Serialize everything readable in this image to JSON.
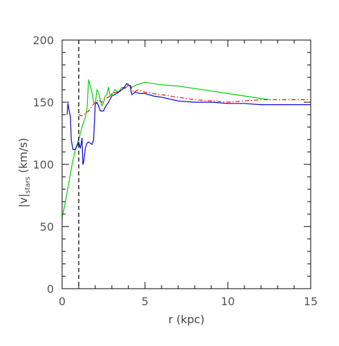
{
  "chart_data": {
    "type": "line",
    "xlabel": "r  (kpc)",
    "ylabel_main": "|v|",
    "ylabel_sub": "stars",
    "ylabel_units": "  (km/s)",
    "xlim": [
      0,
      15
    ],
    "ylim": [
      0,
      200
    ],
    "x_ticks": [
      0,
      5,
      10,
      15
    ],
    "y_ticks": [
      0,
      50,
      100,
      150,
      200
    ],
    "x_minor_step": 1,
    "y_minor_step": 10,
    "grid": false,
    "reference_line": {
      "x": 1,
      "style": "dashed",
      "color": "#000000"
    },
    "series": [
      {
        "color": "#00cc00",
        "style": "solid",
        "points": [
          [
            0,
            57
          ],
          [
            0.2,
            70
          ],
          [
            0.4,
            85
          ],
          [
            0.6,
            100
          ],
          [
            0.8,
            112
          ],
          [
            1.0,
            120
          ],
          [
            1.2,
            130
          ],
          [
            1.4,
            138
          ],
          [
            1.5,
            145
          ],
          [
            1.6,
            168
          ],
          [
            1.7,
            163
          ],
          [
            1.8,
            158
          ],
          [
            1.9,
            150
          ],
          [
            2.0,
            149
          ],
          [
            2.1,
            160
          ],
          [
            2.2,
            158
          ],
          [
            2.3,
            152
          ],
          [
            2.4,
            147
          ],
          [
            2.5,
            150
          ],
          [
            2.6,
            155
          ],
          [
            2.7,
            156
          ],
          [
            2.8,
            162
          ],
          [
            2.9,
            155
          ],
          [
            3.0,
            156
          ],
          [
            3.2,
            160
          ],
          [
            3.4,
            158
          ],
          [
            3.6,
            162
          ],
          [
            3.8,
            161
          ],
          [
            4.0,
            164
          ],
          [
            4.2,
            162
          ],
          [
            4.5,
            164
          ],
          [
            5.0,
            166
          ],
          [
            6.0,
            164
          ],
          [
            7.0,
            163
          ],
          [
            8.0,
            161
          ],
          [
            9.0,
            159
          ],
          [
            10.0,
            157
          ],
          [
            11.0,
            155
          ],
          [
            12.0,
            153
          ],
          [
            12.5,
            152
          ]
        ]
      },
      {
        "color": "#ff0000",
        "style": "dash-dot",
        "points": [
          [
            1.0,
            140
          ],
          [
            1.2,
            139
          ],
          [
            1.4,
            141
          ],
          [
            1.6,
            143
          ],
          [
            1.8,
            147
          ],
          [
            2.0,
            150
          ],
          [
            2.2,
            152
          ],
          [
            2.4,
            150
          ],
          [
            2.6,
            153
          ],
          [
            2.8,
            154
          ],
          [
            3.0,
            157
          ],
          [
            3.3,
            158
          ],
          [
            3.6,
            160
          ],
          [
            3.9,
            163
          ],
          [
            4.1,
            164
          ],
          [
            4.3,
            158
          ],
          [
            4.6,
            160
          ],
          [
            5.0,
            158
          ],
          [
            6.0,
            156
          ],
          [
            7.0,
            154
          ],
          [
            8.0,
            152
          ],
          [
            9.0,
            151
          ],
          [
            10.0,
            150
          ],
          [
            11.0,
            151
          ],
          [
            12.0,
            152
          ],
          [
            13.0,
            152
          ],
          [
            14.0,
            152
          ],
          [
            15.0,
            152
          ]
        ]
      },
      {
        "color": "#0000cc",
        "style": "solid",
        "points": [
          [
            0.3,
            140
          ],
          [
            0.35,
            149
          ],
          [
            0.4,
            145
          ],
          [
            0.5,
            138
          ],
          [
            0.55,
            120
          ],
          [
            0.65,
            112
          ],
          [
            0.8,
            112
          ],
          [
            0.9,
            115
          ],
          [
            1.0,
            118
          ],
          [
            1.1,
            113
          ],
          [
            1.2,
            121
          ],
          [
            1.25,
            100
          ],
          [
            1.3,
            102
          ],
          [
            1.4,
            113
          ],
          [
            1.5,
            117
          ],
          [
            1.6,
            118
          ],
          [
            1.8,
            116
          ],
          [
            1.9,
            120
          ],
          [
            2.0,
            148
          ],
          [
            2.1,
            150
          ],
          [
            2.2,
            147
          ],
          [
            2.3,
            143
          ],
          [
            2.5,
            143
          ],
          [
            2.6,
            146
          ],
          [
            2.8,
            150
          ],
          [
            3.0,
            155
          ],
          [
            3.3,
            157
          ],
          [
            3.6,
            160
          ],
          [
            3.8,
            163
          ],
          [
            3.9,
            165
          ],
          [
            4.1,
            163
          ],
          [
            4.2,
            156
          ],
          [
            4.4,
            158
          ],
          [
            4.7,
            157
          ],
          [
            5.0,
            157
          ],
          [
            5.5,
            155
          ],
          [
            6.0,
            154
          ],
          [
            7.0,
            151
          ],
          [
            8.0,
            150
          ],
          [
            9.0,
            150
          ],
          [
            10.0,
            149
          ],
          [
            11.0,
            149
          ],
          [
            12.0,
            148
          ],
          [
            13.0,
            148
          ],
          [
            14.0,
            148
          ],
          [
            15.0,
            148
          ]
        ]
      }
    ]
  }
}
